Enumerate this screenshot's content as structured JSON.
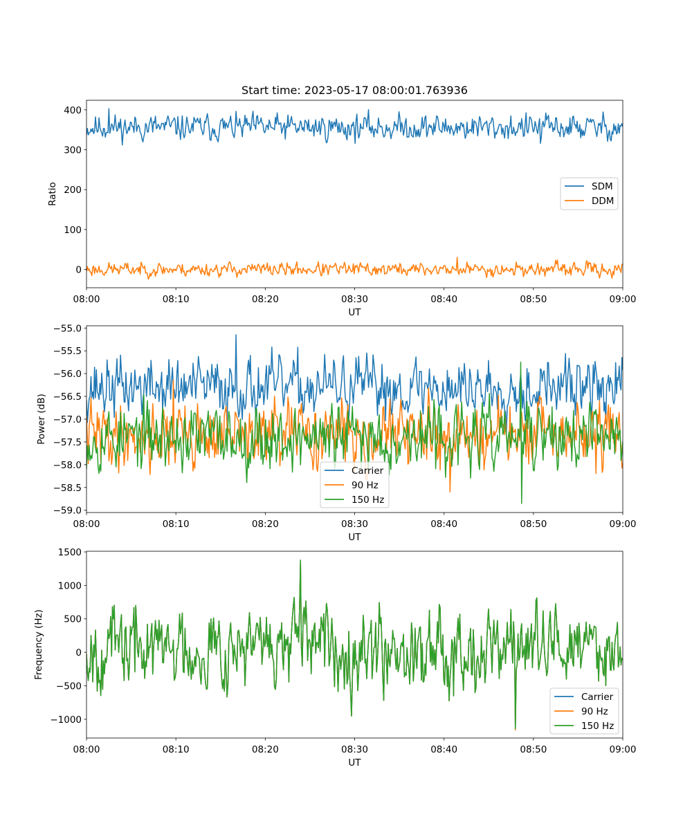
{
  "title": "Start time: 2023-05-17 08:00:01.763936",
  "colors": {
    "blue": "#1f77b4",
    "orange": "#ff7f0e",
    "green": "#2ca02c",
    "axis": "#000000",
    "legend_edge": "#cccccc"
  },
  "chart_data": [
    {
      "type": "line",
      "title": "Start time: 2023-05-17 08:00:01.763936",
      "xlabel": "UT",
      "ylabel": "Ratio",
      "xlim": [
        "08:00",
        "09:00"
      ],
      "ylim": [
        -46,
        424
      ],
      "grid": false,
      "legend_placement": "center-right",
      "xticks": [
        "08:00",
        "08:10",
        "08:20",
        "08:30",
        "08:40",
        "08:50",
        "09:00"
      ],
      "yticks": [
        0,
        100,
        200,
        300,
        400
      ],
      "series": [
        {
          "name": "SDM",
          "color": "#1f77b4",
          "mean": 356,
          "amplitude": 15,
          "spike_max": 403,
          "spike_min": 316,
          "seed": 11
        },
        {
          "name": "DDM",
          "color": "#ff7f0e",
          "mean": 0,
          "amplitude": 8,
          "spike_max": 30,
          "spike_min": -22,
          "seed": 23
        }
      ]
    },
    {
      "type": "line",
      "title": "",
      "xlabel": "UT",
      "ylabel": "Power (dB)",
      "xlim": [
        "08:00",
        "09:00"
      ],
      "ylim": [
        -59.05,
        -54.95
      ],
      "grid": false,
      "legend_placement": "lower-center",
      "xticks": [
        "08:00",
        "08:10",
        "08:20",
        "08:30",
        "08:40",
        "08:50",
        "09:00"
      ],
      "yticks": [
        -59.0,
        -58.5,
        -58.0,
        -57.5,
        -57.0,
        -56.5,
        -56.0,
        -55.5,
        -55.0
      ],
      "series": [
        {
          "name": "Carrier",
          "color": "#1f77b4",
          "mean": -56.3,
          "amplitude": 0.3,
          "spike_max": -55.15,
          "spike_min": -57.1,
          "seed": 37
        },
        {
          "name": "90 Hz",
          "color": "#ff7f0e",
          "mean": -57.35,
          "amplitude": 0.33,
          "spike_max": -56.15,
          "spike_min": -58.6,
          "seed": 41
        },
        {
          "name": "150 Hz",
          "color": "#2ca02c",
          "mean": -57.4,
          "amplitude": 0.33,
          "spike_max": -55.75,
          "spike_min": -58.85,
          "seed": 53
        }
      ]
    },
    {
      "type": "line",
      "title": "",
      "xlabel": "UT",
      "ylabel": "Frequency (Hz)",
      "xlim": [
        "08:00",
        "09:00"
      ],
      "ylim": [
        -1280,
        1510
      ],
      "grid": false,
      "legend_placement": "lower-right",
      "xticks": [
        "08:00",
        "08:10",
        "08:20",
        "08:30",
        "08:40",
        "08:50",
        "09:00"
      ],
      "yticks": [
        -1000,
        -500,
        0,
        500,
        1000,
        1500
      ],
      "series": [
        {
          "name": "Carrier",
          "color": "#1f77b4",
          "mean": 80,
          "amplitude": 280,
          "spike_max": 1370,
          "spike_min": -1160,
          "seed": 67
        },
        {
          "name": "90 Hz",
          "color": "#ff7f0e",
          "mean": 80,
          "amplitude": 280,
          "spike_max": 1370,
          "spike_min": -1160,
          "seed": 67
        },
        {
          "name": "150 Hz",
          "color": "#2ca02c",
          "mean": 80,
          "amplitude": 280,
          "spike_max": 1380,
          "spike_min": -1140,
          "seed": 67
        }
      ]
    }
  ]
}
